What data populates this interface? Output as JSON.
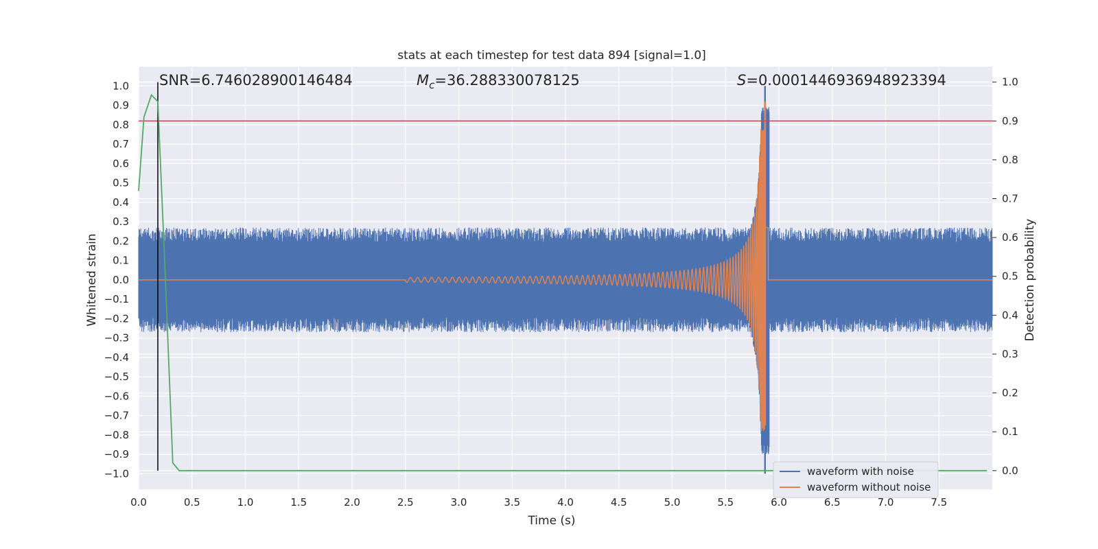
{
  "chart_data": {
    "type": "line",
    "title": "stats at each timestep for test data 894 [signal=1.0]",
    "xlabel": "Time (s)",
    "ylabel": "Whitened strain",
    "ylabel_right": "Detection probability",
    "xlim": [
      0.0,
      8.0
    ],
    "ylim": [
      -1.08,
      1.1
    ],
    "ylim_right": [
      -0.048,
      1.04
    ],
    "xticks": [
      "0.0",
      "0.5",
      "1.0",
      "1.5",
      "2.0",
      "2.5",
      "3.0",
      "3.5",
      "4.0",
      "4.5",
      "5.0",
      "5.5",
      "6.0",
      "6.5",
      "7.0",
      "7.5"
    ],
    "yticks": [
      "1.0",
      "0.9",
      "0.8",
      "0.7",
      "0.6",
      "0.5",
      "0.4",
      "0.3",
      "0.2",
      "0.1",
      "0.0",
      "−0.1",
      "−0.2",
      "−0.3",
      "−0.4",
      "−0.5",
      "−0.6",
      "−0.7",
      "−0.8",
      "−0.9",
      "−1.0"
    ],
    "yticks_right": [
      "1.0",
      "0.9",
      "0.8",
      "0.7",
      "0.6",
      "0.5",
      "0.4",
      "0.3",
      "0.2",
      "0.1",
      "0.0"
    ],
    "grid": true,
    "legend_position": "lower-right",
    "annotations": {
      "snr": "SNR=6.746028900146484",
      "mc_symbol": "M",
      "mc_subscript": "c",
      "mc_value": "=36.288330078125",
      "s_symbol": "S",
      "s_value": "=0.0001446936948923394"
    },
    "series": [
      {
        "name": "waveform with noise",
        "color": "#4c72b0",
        "axis": "left",
        "noise_band": [
          -0.27,
          0.27
        ],
        "merger_time": 5.87,
        "peak": [
          -1.0,
          1.0
        ]
      },
      {
        "name": "waveform without noise",
        "color": "#dd8452",
        "axis": "left",
        "chirp_start": 2.5,
        "merger_time": 5.87,
        "peak": [
          -0.75,
          0.92
        ]
      },
      {
        "color": "#55a868",
        "axis": "right",
        "x": [
          0.0,
          0.05,
          0.12,
          0.18,
          0.25,
          0.32,
          0.38,
          7.95
        ],
        "y": [
          0.72,
          0.91,
          0.967,
          0.95,
          0.5,
          0.02,
          0.0,
          0.0
        ]
      }
    ],
    "threshold": {
      "value": 0.9,
      "axis": "right",
      "color": "#c44e52"
    },
    "trigger_time": 0.18
  }
}
